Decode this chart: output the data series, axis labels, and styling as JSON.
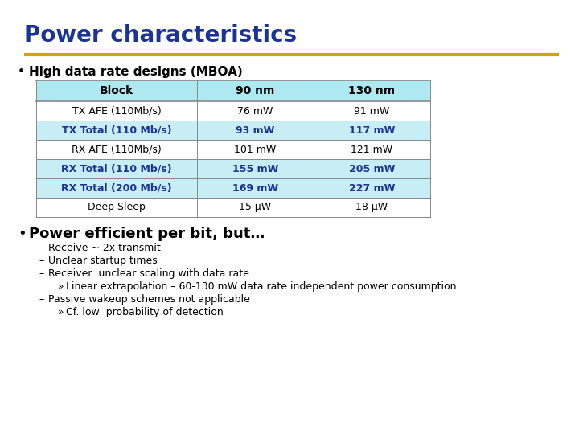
{
  "title": "Power characteristics",
  "title_color": "#1a3399",
  "separator_color": "#d4a017",
  "bullet1": "High data rate designs (MBOA)",
  "bullet2": "Power efficient per bit, but…",
  "sub_bullets": [
    "Receive ~ 2x transmit",
    "Unclear startup times",
    "Receiver: unclear scaling with data rate",
    "Passive wakeup schemes not applicable"
  ],
  "sub_sub_bullets": {
    "Receiver: unclear scaling with data rate": "Linear extrapolation – 60-130 mW data rate independent power consumption",
    "Passive wakeup schemes not applicable": "Cf. low  probability of detection"
  },
  "table_headers": [
    "Block",
    "90 nm",
    "130 nm"
  ],
  "table_rows": [
    [
      "TX AFE (110Mb/s)",
      "76 mW",
      "91 mW",
      false
    ],
    [
      "TX Total (110 Mb/s)",
      "93 mW",
      "117 mW",
      true
    ],
    [
      "RX AFE (110Mb/s)",
      "101 mW",
      "121 mW",
      false
    ],
    [
      "RX Total (110 Mb/s)",
      "155 mW",
      "205 mW",
      true
    ],
    [
      "RX Total (200 Mb/s)",
      "169 mW",
      "227 mW",
      true
    ],
    [
      "Deep Sleep",
      "15 μW",
      "18 μW",
      false
    ]
  ],
  "header_bg": "#aee8f0",
  "header_text_color": "#000000",
  "row_highlight_bg": "#c8eef5",
  "row_normal_bg": "#ffffff",
  "row_highlight_text": "#1a3399",
  "row_normal_text": "#000000",
  "table_border_color": "#888888",
  "title_fontsize": 20,
  "bullet1_fontsize": 11,
  "bullet2_fontsize": 13,
  "table_header_fontsize": 10,
  "table_row_fontsize": 9,
  "sub_bullet_fontsize": 9,
  "sub_sub_bullet_fontsize": 9
}
